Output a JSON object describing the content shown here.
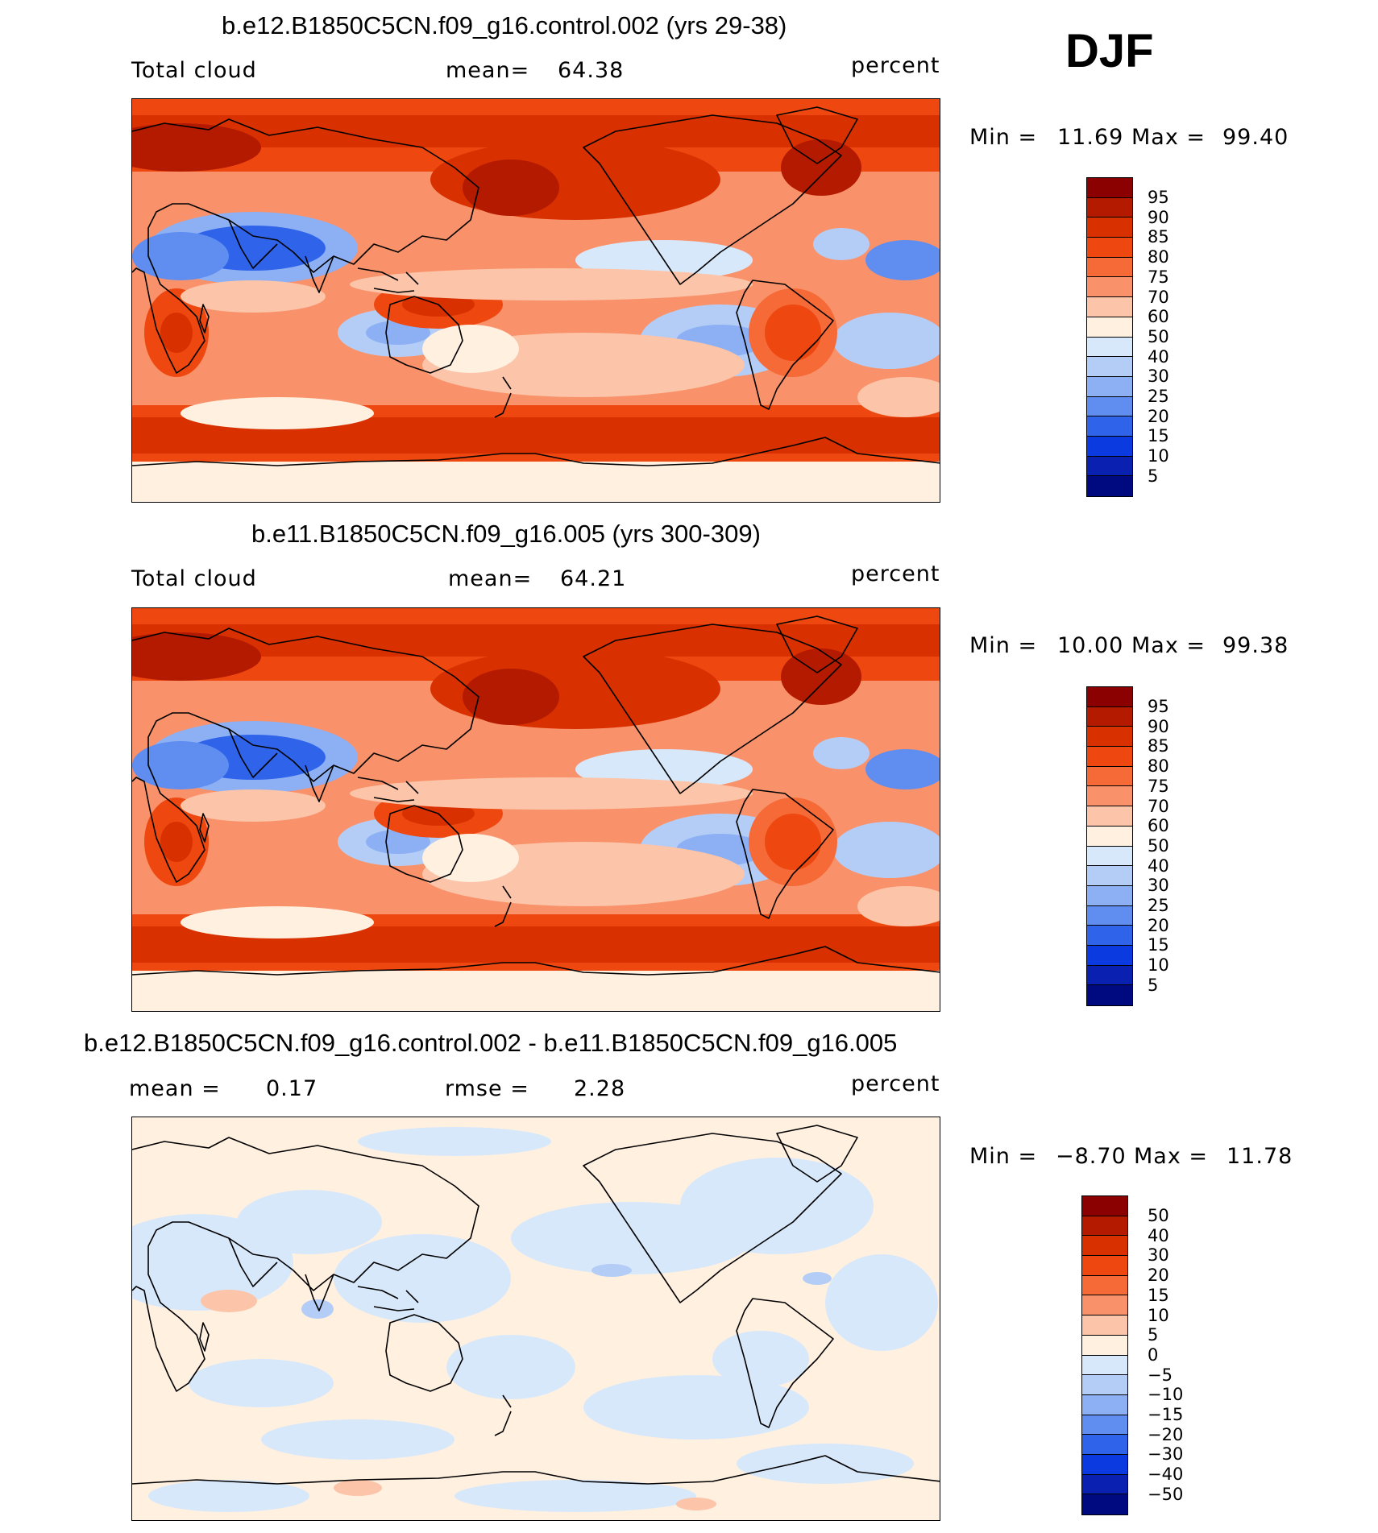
{
  "figure": {
    "season": "DJF"
  },
  "panels": [
    {
      "id": "top",
      "title": "b.e12.B1850C5CN.f09_g16.control.002 (yrs 29-38)",
      "left_label": "Total cloud",
      "mid_label": "mean=",
      "mid_value": "64.38",
      "units": "percent",
      "min_label": "Min =",
      "min_value": "11.69",
      "max_label": "Max =",
      "max_value": "99.40",
      "colorbar_labels": [
        "95",
        "90",
        "85",
        "80",
        "75",
        "70",
        "60",
        "50",
        "40",
        "30",
        "25",
        "20",
        "15",
        "10",
        "5"
      ]
    },
    {
      "id": "middle",
      "title": "b.e11.B1850C5CN.f09_g16.005 (yrs 300-309)",
      "left_label": "Total cloud",
      "mid_label": "mean=",
      "mid_value": "64.21",
      "units": "percent",
      "min_label": "Min =",
      "min_value": "10.00",
      "max_label": "Max =",
      "max_value": "99.38",
      "colorbar_labels": [
        "95",
        "90",
        "85",
        "80",
        "75",
        "70",
        "60",
        "50",
        "40",
        "30",
        "25",
        "20",
        "15",
        "10",
        "5"
      ]
    },
    {
      "id": "diff",
      "title": "b.e12.B1850C5CN.f09_g16.control.002 - b.e11.B1850C5CN.f09_g16.005",
      "left_label": "mean =",
      "left_value": "0.17",
      "mid_label": "rmse =",
      "mid_value": "2.28",
      "units": "percent",
      "min_label": "Min =",
      "min_value": "−8.70",
      "max_label": "Max =",
      "max_value": "11.78",
      "colorbar_labels": [
        "50",
        "40",
        "30",
        "20",
        "15",
        "10",
        "5",
        "0",
        "−5",
        "−10",
        "−15",
        "−20",
        "−30",
        "−40",
        "−50"
      ]
    }
  ],
  "colors": {
    "colorbar": [
      "#8b0000",
      "#b31a00",
      "#d93000",
      "#ee4810",
      "#f66a38",
      "#f9926a",
      "#fcc4a8",
      "#fff0e0",
      "#d8e8fb",
      "#b4cdf7",
      "#8cb0f3",
      "#5f8ef0",
      "#2f63ea",
      "#0a3ae0",
      "#0a20b0",
      "#000a80"
    ],
    "bg_cloud": "#f9926a",
    "bg_diff": "#fff0e0",
    "coast": "#000000"
  }
}
